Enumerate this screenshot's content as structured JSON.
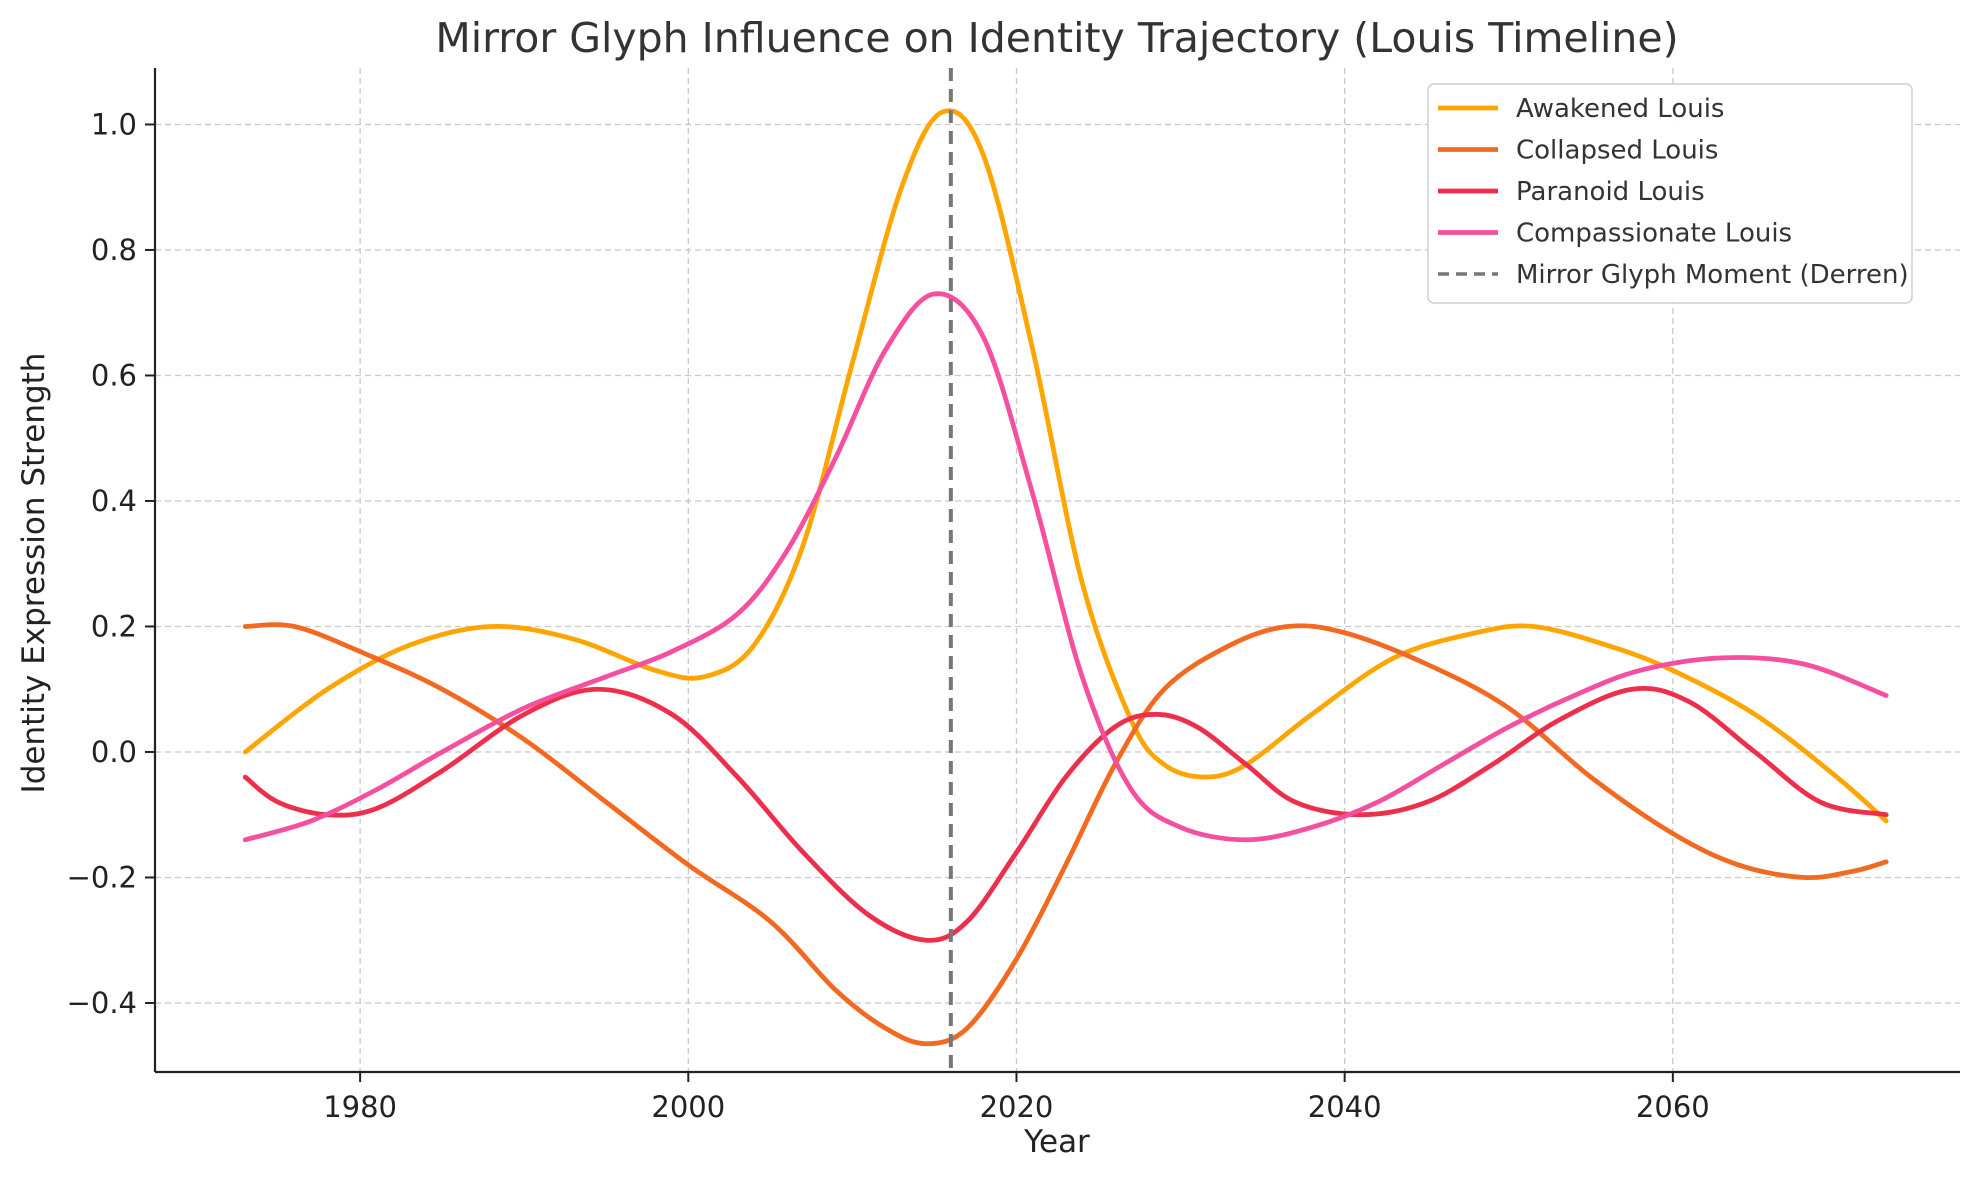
{
  "chart_data": {
    "type": "line",
    "title": "Mirror Glyph Influence on Identity Trajectory (Louis Timeline)",
    "xlabel": "Year",
    "ylabel": "Identity Expression Strength",
    "xlim": [
      1967.5,
      2077.5
    ],
    "ylim": [
      -0.51,
      1.09
    ],
    "xticks": [
      1980,
      2000,
      2020,
      2040,
      2060
    ],
    "xtick_labels": [
      "1980",
      "2000",
      "2020",
      "2040",
      "2060"
    ],
    "yticks": [
      1.0,
      0.8,
      0.6,
      0.4,
      0.2,
      0.0,
      -0.2,
      -0.4
    ],
    "ytick_labels": [
      "1.0",
      "0.8",
      "0.6",
      "0.4",
      "0.2",
      "0.0",
      "−0.2",
      "−0.4"
    ],
    "grid": true,
    "legend_position": "top-right",
    "series": [
      {
        "name": "Awakened Louis",
        "color": "#FFA500",
        "x": [
          1973,
          1978,
          1983,
          1988,
          1993,
          1998,
          2001,
          2004,
          2007,
          2010,
          2013,
          2015.5,
          2018,
          2021,
          2024,
          2027,
          2029,
          2031.5,
          2034,
          2038,
          2043,
          2048,
          2051.5,
          2056,
          2060,
          2065,
          2070,
          2073
        ],
        "values": [
          0.0,
          0.1,
          0.17,
          0.2,
          0.18,
          0.13,
          0.12,
          0.17,
          0.33,
          0.62,
          0.9,
          1.02,
          0.95,
          0.64,
          0.27,
          0.05,
          -0.02,
          -0.04,
          -0.02,
          0.06,
          0.15,
          0.19,
          0.2,
          0.17,
          0.13,
          0.06,
          -0.04,
          -0.11
        ]
      },
      {
        "name": "Collapsed Louis",
        "color": "#F26A21",
        "x": [
          1973,
          1976,
          1980,
          1985,
          1990,
          1995,
          2000,
          2005,
          2009,
          2012,
          2014.5,
          2017,
          2020,
          2023,
          2026,
          2029,
          2033,
          2036.5,
          2040,
          2045,
          2050,
          2055,
          2060,
          2064,
          2068,
          2071,
          2073
        ],
        "values": [
          0.2,
          0.2,
          0.16,
          0.1,
          0.02,
          -0.08,
          -0.18,
          -0.27,
          -0.38,
          -0.44,
          -0.465,
          -0.44,
          -0.33,
          -0.18,
          -0.02,
          0.1,
          0.17,
          0.2,
          0.19,
          0.14,
          0.07,
          -0.04,
          -0.13,
          -0.18,
          -0.2,
          -0.19,
          -0.175
        ]
      },
      {
        "name": "Paranoid Louis",
        "color": "#EC2F4B",
        "x": [
          1973,
          1975,
          1978,
          1981,
          1985,
          1990,
          1994.5,
          1999,
          2003,
          2007,
          2011,
          2014.5,
          2017,
          2020,
          2023,
          2026,
          2028.5,
          2031,
          2034,
          2037,
          2041,
          2045,
          2049,
          2053,
          2057.5,
          2061,
          2065,
          2069,
          2073
        ],
        "values": [
          -0.04,
          -0.08,
          -0.1,
          -0.09,
          -0.03,
          0.06,
          0.1,
          0.06,
          -0.04,
          -0.16,
          -0.26,
          -0.3,
          -0.27,
          -0.16,
          -0.04,
          0.04,
          0.06,
          0.04,
          -0.02,
          -0.08,
          -0.1,
          -0.08,
          -0.02,
          0.05,
          0.1,
          0.08,
          0.0,
          -0.08,
          -0.1
        ]
      },
      {
        "name": "Compassionate Louis",
        "color": "#F5509F",
        "x": [
          1973,
          1977,
          1981,
          1985,
          1990,
          1995,
          1999,
          2003,
          2006,
          2009,
          2012,
          2015,
          2018,
          2021,
          2024,
          2027,
          2030,
          2034,
          2038,
          2042,
          2046,
          2050,
          2054,
          2058,
          2063,
          2068,
          2073
        ],
        "values": [
          -0.14,
          -0.11,
          -0.06,
          0.0,
          0.07,
          0.12,
          0.16,
          0.22,
          0.32,
          0.47,
          0.64,
          0.73,
          0.66,
          0.41,
          0.12,
          -0.06,
          -0.12,
          -0.14,
          -0.12,
          -0.08,
          -0.02,
          0.04,
          0.09,
          0.13,
          0.15,
          0.14,
          0.09
        ]
      }
    ],
    "vertical_marker": {
      "name": "Mirror Glyph Moment (Derren)",
      "x": 2016,
      "color": "#777777",
      "style": "dashed"
    }
  }
}
